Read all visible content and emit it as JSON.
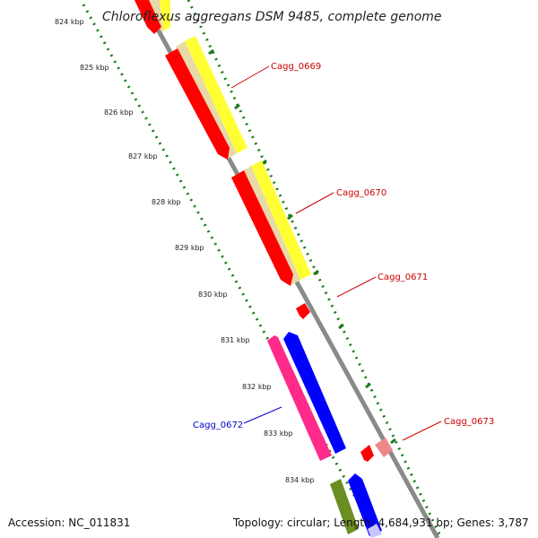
{
  "title": "Chloroflexus aggregans DSM 9485, complete genome",
  "footer": {
    "accession": "Accession: NC_011831",
    "topology": "Topology: circular; Length: 4,684,931 bp; Genes: 3,787"
  },
  "ticks": [
    "824 kbp",
    "825 kbp",
    "826 kbp",
    "827 kbp",
    "828 kbp",
    "829 kbp",
    "830 kbp",
    "831 kbp",
    "832 kbp",
    "833 kbp",
    "834 kbp"
  ],
  "gene_labels": [
    {
      "name": "Cagg_0669",
      "color": "#cc0000"
    },
    {
      "name": "Cagg_0670",
      "color": "#cc0000"
    },
    {
      "name": "Cagg_0671",
      "color": "#cc0000"
    },
    {
      "name": "Cagg_0672",
      "color": "#0000cc"
    },
    {
      "name": "Cagg_0673",
      "color": "#cc0000"
    }
  ],
  "colors": {
    "backbone": "#8c8c8c",
    "ticks": "#1a7a1a",
    "gene_forward": "#ff0000",
    "gene_reverse": "#0000ff",
    "gene_pink": "#ff2a8a",
    "gene_olive": "#6b8e23",
    "feature_yellow": "#ffff33",
    "feature_tan": "#e8d9a8"
  }
}
